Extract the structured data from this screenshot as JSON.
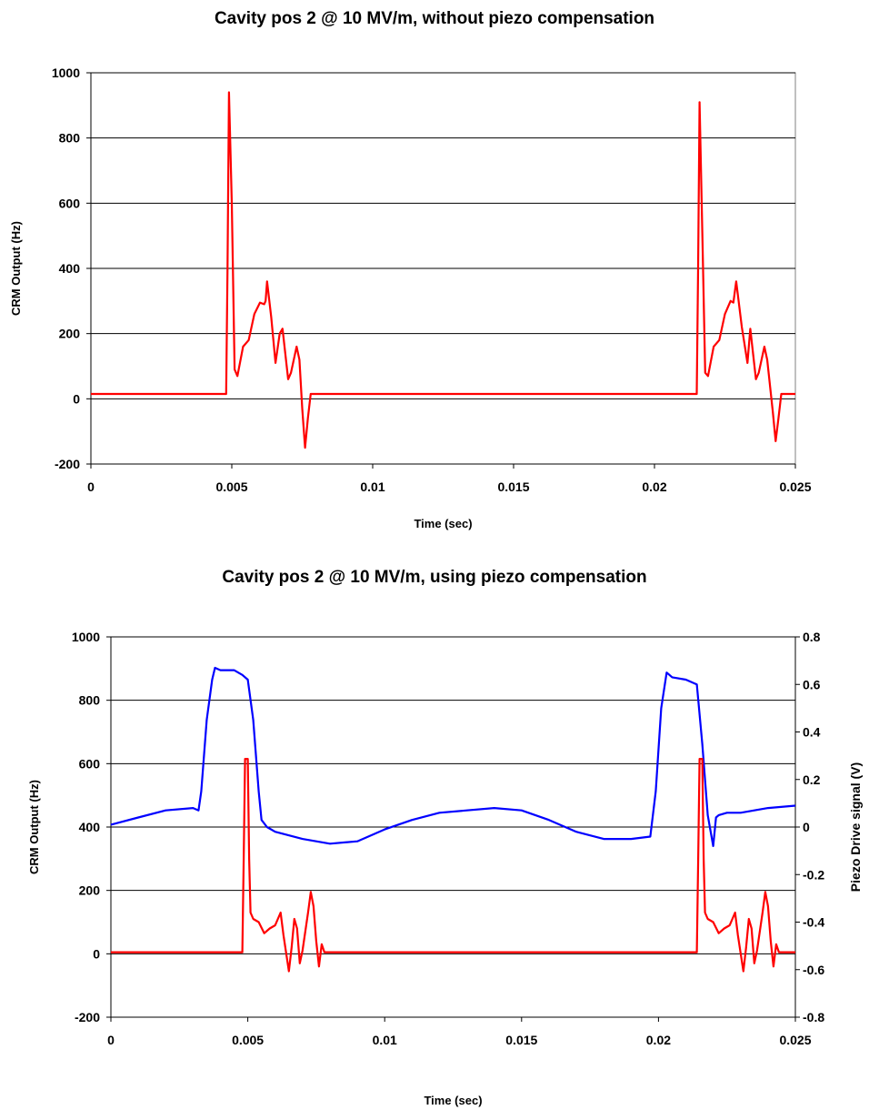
{
  "chart_data": [
    {
      "type": "line",
      "title": "Cavity pos 2 @ 10 MV/m, without piezo compensation",
      "xlabel": "Time (sec)",
      "ylabel": "CRM Output (Hz)",
      "xlim": [
        0,
        0.025
      ],
      "ylim": [
        -200,
        1000
      ],
      "x_ticks": [
        "0",
        "0.005",
        "0.01",
        "0.015",
        "0.02",
        "0.025"
      ],
      "y_ticks": [
        "-200",
        "0",
        "200",
        "400",
        "600",
        "800",
        "1000"
      ],
      "grid": "horizontal",
      "series": [
        {
          "color": "#ff0000",
          "x": [
            0,
            0.0048,
            0.00485,
            0.0049,
            0.005,
            0.0051,
            0.0052,
            0.0054,
            0.0056,
            0.0058,
            0.006,
            0.00615,
            0.0062,
            0.00625,
            0.0064,
            0.00655,
            0.0067,
            0.0068,
            0.007,
            0.0071,
            0.0073,
            0.0074,
            0.0075,
            0.0076,
            0.0077,
            0.0078,
            0.02,
            0.0215,
            0.02155,
            0.0216,
            0.0217,
            0.0218,
            0.0219,
            0.0221,
            0.0223,
            0.0225,
            0.0227,
            0.0228,
            0.0229,
            0.0231,
            0.0233,
            0.0234,
            0.0236,
            0.0237,
            0.0239,
            0.024,
            0.0242,
            0.0243,
            0.0244,
            0.0245,
            0.025
          ],
          "y": [
            15,
            15,
            400,
            940,
            600,
            90,
            70,
            160,
            180,
            260,
            295,
            290,
            300,
            360,
            250,
            110,
            200,
            215,
            60,
            80,
            160,
            120,
            -30,
            -150,
            -60,
            15,
            15,
            15,
            400,
            910,
            500,
            80,
            70,
            160,
            180,
            260,
            300,
            295,
            360,
            220,
            110,
            215,
            60,
            80,
            160,
            120,
            -40,
            -130,
            -60,
            15,
            15
          ]
        }
      ]
    },
    {
      "type": "line",
      "title": "Cavity pos 2 @ 10 MV/m, using piezo compensation",
      "xlabel": "Time (sec)",
      "ylabel": "CRM Output (Hz)",
      "y2label": "Piezo Drive signal (V)",
      "xlim": [
        0,
        0.025
      ],
      "ylim": [
        -200,
        1000
      ],
      "y2lim": [
        -0.8,
        0.8
      ],
      "x_ticks": [
        "0",
        "0.005",
        "0.01",
        "0.015",
        "0.02",
        "0.025"
      ],
      "y_ticks": [
        "-200",
        "0",
        "200",
        "400",
        "600",
        "800",
        "1000"
      ],
      "y2_ticks": [
        "-0.8",
        "-0.6",
        "-0.4",
        "-0.2",
        "0",
        "0.2",
        "0.4",
        "0.6",
        "0.8"
      ],
      "grid": "horizontal",
      "series": [
        {
          "color": "#ff0000",
          "axis": "left",
          "x": [
            0,
            0.0048,
            0.00485,
            0.0049,
            0.005,
            0.00505,
            0.0051,
            0.0052,
            0.0054,
            0.0056,
            0.0058,
            0.006,
            0.0062,
            0.0063,
            0.0065,
            0.0066,
            0.0067,
            0.0068,
            0.0069,
            0.007,
            0.0072,
            0.0073,
            0.0074,
            0.0075,
            0.0076,
            0.0077,
            0.0078,
            0.008,
            0.0214,
            0.02145,
            0.0215,
            0.0216,
            0.02165,
            0.0217,
            0.0218,
            0.022,
            0.0222,
            0.0224,
            0.0226,
            0.0228,
            0.0229,
            0.0231,
            0.0232,
            0.0233,
            0.0234,
            0.0235,
            0.0236,
            0.0238,
            0.0239,
            0.024,
            0.0241,
            0.0242,
            0.0243,
            0.0244,
            0.0246,
            0.025
          ],
          "y": [
            5,
            5,
            300,
            615,
            615,
            300,
            130,
            110,
            100,
            65,
            80,
            90,
            130,
            60,
            -55,
            20,
            110,
            80,
            -30,
            10,
            130,
            195,
            150,
            40,
            -40,
            30,
            5,
            5,
            5,
            300,
            615,
            615,
            300,
            130,
            110,
            100,
            65,
            80,
            90,
            130,
            60,
            -55,
            20,
            110,
            80,
            -30,
            10,
            130,
            195,
            150,
            40,
            -40,
            30,
            5,
            5,
            5
          ]
        },
        {
          "color": "#0000ff",
          "axis": "right",
          "x": [
            0,
            0.001,
            0.002,
            0.003,
            0.0032,
            0.0033,
            0.0035,
            0.0037,
            0.0038,
            0.004,
            0.0045,
            0.0048,
            0.005,
            0.0052,
            0.0054,
            0.0055,
            0.0057,
            0.006,
            0.007,
            0.008,
            0.009,
            0.01,
            0.011,
            0.012,
            0.013,
            0.014,
            0.015,
            0.016,
            0.017,
            0.018,
            0.019,
            0.0197,
            0.0199,
            0.0201,
            0.0203,
            0.0205,
            0.021,
            0.0214,
            0.0216,
            0.0218,
            0.022,
            0.0221,
            0.0222,
            0.0225,
            0.023,
            0.024,
            0.025
          ],
          "y": [
            0.01,
            0.04,
            0.07,
            0.08,
            0.07,
            0.15,
            0.45,
            0.62,
            0.67,
            0.66,
            0.66,
            0.64,
            0.62,
            0.45,
            0.15,
            0.03,
            0.0,
            -0.02,
            -0.05,
            -0.07,
            -0.06,
            -0.01,
            0.03,
            0.06,
            0.07,
            0.08,
            0.07,
            0.03,
            -0.02,
            -0.05,
            -0.05,
            -0.04,
            0.15,
            0.5,
            0.65,
            0.63,
            0.62,
            0.6,
            0.35,
            0.05,
            -0.08,
            0.04,
            0.05,
            0.06,
            0.06,
            0.08,
            0.09
          ]
        }
      ]
    }
  ]
}
